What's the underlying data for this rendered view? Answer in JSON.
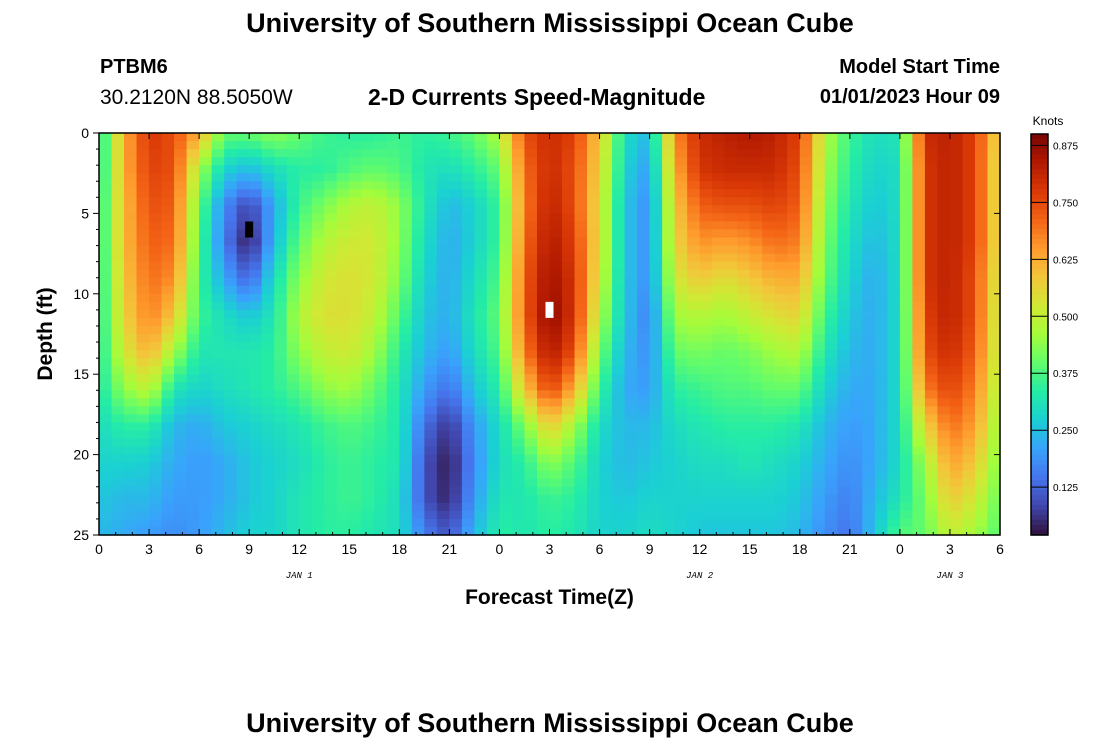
{
  "header": {
    "title": "University of Southern Mississippi Ocean Cube",
    "station": "PTBM6",
    "coords": "30.2120N  88.5050W",
    "subtitle": "2-D Currents Speed-Magnitude",
    "model_start_label": "Model Start Time",
    "model_start_value": "01/01/2023 Hour 09"
  },
  "footer": {
    "title": "University of Southern Mississippi Ocean Cube"
  },
  "chart_data": {
    "type": "heatmap",
    "xlabel": "Forecast Time(Z)",
    "ylabel": "Depth (ft)",
    "colorbar_label": "Knots",
    "x_range_hours": [
      0,
      54
    ],
    "y_range_ft": [
      0,
      25
    ],
    "x_ticks": [
      {
        "h": 0,
        "label": "0"
      },
      {
        "h": 3,
        "label": "3"
      },
      {
        "h": 6,
        "label": "6"
      },
      {
        "h": 9,
        "label": "9"
      },
      {
        "h": 12,
        "label": "12"
      },
      {
        "h": 15,
        "label": "15"
      },
      {
        "h": 18,
        "label": "18"
      },
      {
        "h": 21,
        "label": "21"
      },
      {
        "h": 24,
        "label": "0"
      },
      {
        "h": 27,
        "label": "3"
      },
      {
        "h": 30,
        "label": "6"
      },
      {
        "h": 33,
        "label": "9"
      },
      {
        "h": 36,
        "label": "12"
      },
      {
        "h": 39,
        "label": "15"
      },
      {
        "h": 42,
        "label": "18"
      },
      {
        "h": 45,
        "label": "21"
      },
      {
        "h": 48,
        "label": "0"
      },
      {
        "h": 51,
        "label": "3"
      },
      {
        "h": 54,
        "label": "6"
      }
    ],
    "y_ticks": [
      {
        "ft": 0,
        "label": "0"
      },
      {
        "ft": 5,
        "label": "5"
      },
      {
        "ft": 10,
        "label": "10"
      },
      {
        "ft": 15,
        "label": "15"
      },
      {
        "ft": 20,
        "label": "20"
      },
      {
        "ft": 25,
        "label": "25"
      }
    ],
    "date_labels": [
      {
        "h": 12,
        "label": "JAN 1"
      },
      {
        "h": 36,
        "label": "JAN 2"
      },
      {
        "h": 51,
        "label": "JAN 3"
      }
    ],
    "colorbar_ticks": [
      "0.125",
      "0.250",
      "0.375",
      "0.500",
      "0.625",
      "0.750",
      "0.875"
    ],
    "colorbar_range": [
      0.02,
      0.9
    ],
    "colormap": [
      "#30123b",
      "#4145ab",
      "#4675ed",
      "#39a2fc",
      "#1bcfd4",
      "#24eca6",
      "#61fc6c",
      "#a4fc3b",
      "#d1e834",
      "#f3c63a",
      "#fe9b2d",
      "#f36315",
      "#d93806",
      "#b11901",
      "#7a0402"
    ],
    "columns": [
      {
        "h": 0.0,
        "v": [
          0.3,
          0.3,
          0.32,
          0.32,
          0.32,
          0.32,
          0.32,
          0.32,
          0.3,
          0.28,
          0.26,
          0.24
        ]
      },
      {
        "h": 1.5,
        "v": [
          0.62,
          0.62,
          0.6,
          0.6,
          0.58,
          0.56,
          0.52,
          0.44,
          0.34,
          0.28,
          0.24,
          0.22
        ]
      },
      {
        "h": 3.0,
        "v": [
          0.78,
          0.76,
          0.74,
          0.72,
          0.7,
          0.68,
          0.62,
          0.5,
          0.34,
          0.27,
          0.24,
          0.2
        ]
      },
      {
        "h": 4.5,
        "v": [
          0.74,
          0.74,
          0.72,
          0.7,
          0.66,
          0.58,
          0.46,
          0.32,
          0.24,
          0.22,
          0.2,
          0.18
        ]
      },
      {
        "h": 6.0,
        "v": [
          0.62,
          0.46,
          0.4,
          0.38,
          0.36,
          0.36,
          0.32,
          0.28,
          0.22,
          0.2,
          0.2,
          0.2
        ]
      },
      {
        "h": 7.5,
        "v": [
          0.4,
          0.28,
          0.18,
          0.16,
          0.22,
          0.3,
          0.32,
          0.3,
          0.26,
          0.22,
          0.22,
          0.24
        ]
      },
      {
        "h": 9.0,
        "v": [
          0.4,
          0.24,
          0.08,
          0.03,
          0.12,
          0.26,
          0.32,
          0.32,
          0.28,
          0.26,
          0.26,
          0.28
        ]
      },
      {
        "h": 10.5,
        "v": [
          0.44,
          0.3,
          0.22,
          0.24,
          0.3,
          0.32,
          0.34,
          0.34,
          0.3,
          0.28,
          0.28,
          0.28
        ]
      },
      {
        "h": 12.0,
        "v": [
          0.4,
          0.34,
          0.36,
          0.4,
          0.44,
          0.48,
          0.44,
          0.38,
          0.32,
          0.3,
          0.32,
          0.32
        ]
      },
      {
        "h": 13.5,
        "v": [
          0.36,
          0.34,
          0.42,
          0.48,
          0.52,
          0.54,
          0.5,
          0.44,
          0.36,
          0.34,
          0.34,
          0.34
        ]
      },
      {
        "h": 15.0,
        "v": [
          0.34,
          0.38,
          0.48,
          0.52,
          0.54,
          0.54,
          0.52,
          0.46,
          0.38,
          0.36,
          0.36,
          0.34
        ]
      },
      {
        "h": 16.5,
        "v": [
          0.34,
          0.4,
          0.5,
          0.52,
          0.52,
          0.5,
          0.46,
          0.4,
          0.36,
          0.34,
          0.34,
          0.32
        ]
      },
      {
        "h": 18.0,
        "v": [
          0.36,
          0.38,
          0.44,
          0.44,
          0.42,
          0.38,
          0.34,
          0.32,
          0.32,
          0.32,
          0.3,
          0.3
        ]
      },
      {
        "h": 19.5,
        "v": [
          0.34,
          0.32,
          0.32,
          0.3,
          0.28,
          0.26,
          0.24,
          0.2,
          0.14,
          0.1,
          0.1,
          0.16
        ]
      },
      {
        "h": 21.0,
        "v": [
          0.36,
          0.3,
          0.24,
          0.22,
          0.22,
          0.22,
          0.2,
          0.14,
          0.06,
          0.03,
          0.04,
          0.1
        ]
      },
      {
        "h": 22.5,
        "v": [
          0.4,
          0.34,
          0.28,
          0.28,
          0.3,
          0.32,
          0.3,
          0.26,
          0.2,
          0.18,
          0.2,
          0.24
        ]
      },
      {
        "h": 24.0,
        "v": [
          0.48,
          0.4,
          0.36,
          0.36,
          0.38,
          0.4,
          0.38,
          0.34,
          0.3,
          0.3,
          0.32,
          0.34
        ]
      },
      {
        "h": 25.5,
        "v": [
          0.74,
          0.7,
          0.68,
          0.7,
          0.72,
          0.72,
          0.68,
          0.58,
          0.42,
          0.34,
          0.32,
          0.32
        ]
      },
      {
        "h": 27.0,
        "v": [
          0.8,
          0.8,
          0.82,
          0.84,
          0.86,
          0.88,
          0.84,
          0.76,
          0.58,
          0.44,
          0.36,
          0.34
        ]
      },
      {
        "h": 28.5,
        "v": [
          0.76,
          0.74,
          0.74,
          0.76,
          0.78,
          0.78,
          0.74,
          0.62,
          0.46,
          0.38,
          0.34,
          0.32
        ]
      },
      {
        "h": 30.0,
        "v": [
          0.58,
          0.56,
          0.54,
          0.54,
          0.52,
          0.48,
          0.42,
          0.36,
          0.3,
          0.28,
          0.28,
          0.28
        ]
      },
      {
        "h": 31.5,
        "v": [
          0.3,
          0.28,
          0.26,
          0.26,
          0.26,
          0.26,
          0.24,
          0.22,
          0.24,
          0.24,
          0.26,
          0.28
        ]
      },
      {
        "h": 33.0,
        "v": [
          0.24,
          0.2,
          0.18,
          0.18,
          0.18,
          0.16,
          0.18,
          0.2,
          0.24,
          0.26,
          0.28,
          0.3
        ]
      },
      {
        "h": 34.5,
        "v": [
          0.66,
          0.62,
          0.58,
          0.56,
          0.52,
          0.46,
          0.4,
          0.34,
          0.3,
          0.28,
          0.28,
          0.28
        ]
      },
      {
        "h": 36.0,
        "v": [
          0.8,
          0.78,
          0.72,
          0.66,
          0.58,
          0.48,
          0.42,
          0.36,
          0.32,
          0.3,
          0.28,
          0.26
        ]
      },
      {
        "h": 37.5,
        "v": [
          0.82,
          0.8,
          0.74,
          0.64,
          0.54,
          0.46,
          0.4,
          0.38,
          0.34,
          0.3,
          0.28,
          0.26
        ]
      },
      {
        "h": 39.0,
        "v": [
          0.84,
          0.8,
          0.74,
          0.66,
          0.58,
          0.5,
          0.42,
          0.38,
          0.34,
          0.32,
          0.28,
          0.26
        ]
      },
      {
        "h": 40.5,
        "v": [
          0.82,
          0.8,
          0.76,
          0.7,
          0.62,
          0.54,
          0.46,
          0.4,
          0.34,
          0.3,
          0.28,
          0.26
        ]
      },
      {
        "h": 42.0,
        "v": [
          0.76,
          0.74,
          0.72,
          0.68,
          0.62,
          0.56,
          0.48,
          0.4,
          0.32,
          0.28,
          0.26,
          0.24
        ]
      },
      {
        "h": 43.5,
        "v": [
          0.48,
          0.46,
          0.44,
          0.42,
          0.4,
          0.36,
          0.32,
          0.28,
          0.24,
          0.22,
          0.2,
          0.18
        ]
      },
      {
        "h": 45.0,
        "v": [
          0.36,
          0.34,
          0.32,
          0.3,
          0.28,
          0.26,
          0.24,
          0.22,
          0.2,
          0.18,
          0.16,
          0.14
        ]
      },
      {
        "h": 46.5,
        "v": [
          0.3,
          0.28,
          0.26,
          0.24,
          0.22,
          0.22,
          0.22,
          0.22,
          0.22,
          0.22,
          0.24,
          0.26
        ]
      },
      {
        "h": 48.0,
        "v": [
          0.32,
          0.3,
          0.3,
          0.3,
          0.3,
          0.3,
          0.3,
          0.3,
          0.3,
          0.3,
          0.32,
          0.38
        ]
      },
      {
        "h": 49.5,
        "v": [
          0.8,
          0.78,
          0.78,
          0.78,
          0.78,
          0.76,
          0.74,
          0.68,
          0.56,
          0.46,
          0.42,
          0.4
        ]
      },
      {
        "h": 51.0,
        "v": [
          0.82,
          0.82,
          0.82,
          0.82,
          0.82,
          0.82,
          0.8,
          0.76,
          0.7,
          0.64,
          0.58,
          0.5
        ]
      },
      {
        "h": 52.5,
        "v": [
          0.76,
          0.76,
          0.76,
          0.76,
          0.74,
          0.74,
          0.72,
          0.68,
          0.64,
          0.58,
          0.52,
          0.46
        ]
      },
      {
        "h": 54.0,
        "v": [
          0.54,
          0.52,
          0.52,
          0.52,
          0.5,
          0.48,
          0.48,
          0.46,
          0.44,
          0.42,
          0.4,
          0.38
        ]
      }
    ],
    "depth_nodes_ft": [
      0,
      2.3,
      4.5,
      6.8,
      9.1,
      11.4,
      13.6,
      15.9,
      18.2,
      20.5,
      22.7,
      25
    ],
    "markers": [
      {
        "h": 9.0,
        "ft": 6.0,
        "color": "#000000"
      },
      {
        "h": 27.0,
        "ft": 11.0,
        "color": "#ffffff"
      }
    ]
  }
}
